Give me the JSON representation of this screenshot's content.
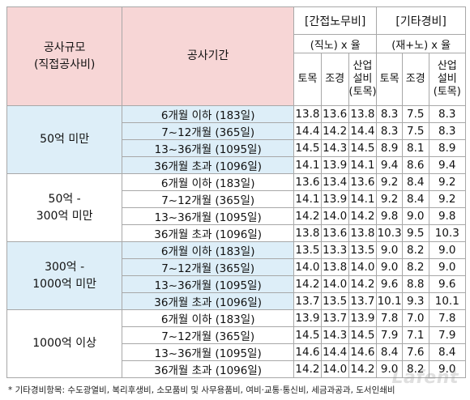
{
  "header": {
    "scale_label_line1": "공사규모",
    "scale_label_line2": "(직접공사비)",
    "period_label": "공사기간",
    "group1_title": "[간접노무비]",
    "group1_formula": "(직노) x 율",
    "group2_title": "[기타경비]",
    "group2_formula": "(재+노) x 율",
    "sub_civil": "토목",
    "sub_build": "조경",
    "sub_industry_line1": "산업",
    "sub_industry_line2": "설비",
    "sub_industry_line3": "(토목)"
  },
  "sections": [
    {
      "label_lines": [
        "50억 미만"
      ],
      "rows": [
        {
          "period": "6개월 이하 (183일)",
          "g1": [
            "13.8",
            "13.6",
            "13.8"
          ],
          "g2": [
            "8.3",
            "7.5",
            "8.3"
          ]
        },
        {
          "period": "7~12개월 (365일)",
          "g1": [
            "14.4",
            "14.2",
            "14.4"
          ],
          "g2": [
            "8.3",
            "7.5",
            "8.3"
          ]
        },
        {
          "period": "13~36개월 (1095일)",
          "g1": [
            "14.5",
            "14.3",
            "14.5"
          ],
          "g2": [
            "8.9",
            "8.1",
            "8.9"
          ]
        },
        {
          "period": "36개월 초과 (1096일)",
          "g1": [
            "14.1",
            "13.9",
            "14.1"
          ],
          "g2": [
            "9.4",
            "8.6",
            "9.4"
          ]
        }
      ]
    },
    {
      "label_lines": [
        "50억 -",
        "300억 미만"
      ],
      "rows": [
        {
          "period": "6개월 이하 (183일)",
          "g1": [
            "13.6",
            "13.4",
            "13.6"
          ],
          "g2": [
            "9.2",
            "8.4",
            "9.2"
          ]
        },
        {
          "period": "7~12개월 (365일)",
          "g1": [
            "14.1",
            "13.9",
            "14.1"
          ],
          "g2": [
            "9.2",
            "8.4",
            "9.2"
          ]
        },
        {
          "period": "13~36개월 (1095일)",
          "g1": [
            "14.2",
            "14.0",
            "14.2"
          ],
          "g2": [
            "9.8",
            "9.0",
            "9.8"
          ]
        },
        {
          "period": "36개월 초과 (1096일)",
          "g1": [
            "13.8",
            "13.6",
            "13.8"
          ],
          "g2": [
            "10.3",
            "9.5",
            "10.3"
          ]
        }
      ]
    },
    {
      "label_lines": [
        "300억 -",
        "1000억 미만"
      ],
      "rows": [
        {
          "period": "6개월 이하 (183일)",
          "g1": [
            "13.5",
            "13.3",
            "13.5"
          ],
          "g2": [
            "9.0",
            "8.2",
            "9.0"
          ]
        },
        {
          "period": "7~12개월 (365일)",
          "g1": [
            "14.0",
            "13.8",
            "14.0"
          ],
          "g2": [
            "9.0",
            "8.2",
            "9.0"
          ]
        },
        {
          "period": "13~36개월 (1095일)",
          "g1": [
            "14.2",
            "14.0",
            "14.2"
          ],
          "g2": [
            "9.6",
            "8.8",
            "9.6"
          ]
        },
        {
          "period": "36개월 초과 (1096일)",
          "g1": [
            "13.7",
            "13.5",
            "13.7"
          ],
          "g2": [
            "10.1",
            "9.3",
            "10.1"
          ]
        }
      ]
    },
    {
      "label_lines": [
        "1000억 이상"
      ],
      "rows": [
        {
          "period": "6개월 이하 (183일)",
          "g1": [
            "13.9",
            "13.7",
            "13.9"
          ],
          "g2": [
            "7.8",
            "7.0",
            "7.8"
          ]
        },
        {
          "period": "7~12개월 (365일)",
          "g1": [
            "14.5",
            "14.3",
            "14.5"
          ],
          "g2": [
            "7.9",
            "7.1",
            "7.9"
          ]
        },
        {
          "period": "13~36개월 (1095일)",
          "g1": [
            "14.6",
            "14.4",
            "14.6"
          ],
          "g2": [
            "8.4",
            "7.6",
            "8.4"
          ]
        },
        {
          "period": "36개월 초과 (1096일)",
          "g1": [
            "14.2",
            "14.0",
            "14.2"
          ],
          "g2": [
            "9.0",
            "8.2",
            "9.0"
          ]
        }
      ]
    }
  ],
  "footnote": "* 기타경비항목: 수도광열비, 복리후생비, 소모품비 및 사무용품비, 여비·교통·통신비, 세금과공과, 도서인쇄비",
  "watermark": "Lafent"
}
